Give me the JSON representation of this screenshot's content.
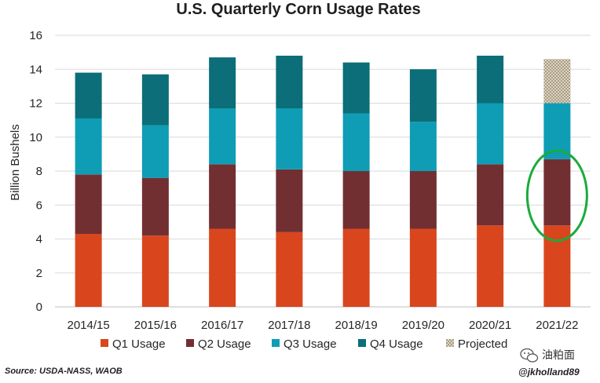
{
  "chart_data": {
    "type": "bar",
    "stacked": true,
    "title": "U.S. Quarterly Corn Usage Rates",
    "xlabel": "",
    "ylabel": "Billion Bushels",
    "ylim": [
      0,
      16
    ],
    "yticks": [
      0,
      2,
      4,
      6,
      8,
      10,
      12,
      14,
      16
    ],
    "grid": "horizontal",
    "legend_position": "bottom",
    "categories": [
      "2014/15",
      "2015/16",
      "2016/17",
      "2017/18",
      "2018/19",
      "2019/20",
      "2020/21",
      "2021/22"
    ],
    "series": [
      {
        "name": "Q1 Usage",
        "color": "#d9461e",
        "values": [
          4.3,
          4.2,
          4.6,
          4.4,
          4.6,
          4.6,
          4.8,
          4.8
        ]
      },
      {
        "name": "Q2 Usage",
        "color": "#722f32",
        "values": [
          3.5,
          3.4,
          3.8,
          3.7,
          3.4,
          3.4,
          3.6,
          3.9
        ]
      },
      {
        "name": "Q3 Usage",
        "color": "#0e9db5",
        "values": [
          3.3,
          3.1,
          3.3,
          3.6,
          3.4,
          2.9,
          3.6,
          3.3
        ]
      },
      {
        "name": "Q4 Usage",
        "color": "#0b6e78",
        "values": [
          2.7,
          3.0,
          3.0,
          3.1,
          3.0,
          3.1,
          2.8,
          0
        ]
      },
      {
        "name": "Projected",
        "color": "#c9bfa8",
        "pattern": "checker",
        "values": [
          0,
          0,
          0,
          0,
          0,
          0,
          0,
          2.6
        ]
      }
    ],
    "annotations": [
      {
        "type": "ellipse",
        "color": "#1aab3c",
        "target_category": "2021/22",
        "y_range": [
          3.9,
          9.2
        ]
      }
    ]
  },
  "footer": {
    "source": "Source: USDA-NASS, WAOB",
    "handle": "@jkholland89"
  },
  "watermark": {
    "text": "油粕面",
    "icon": "wechat-icon"
  }
}
